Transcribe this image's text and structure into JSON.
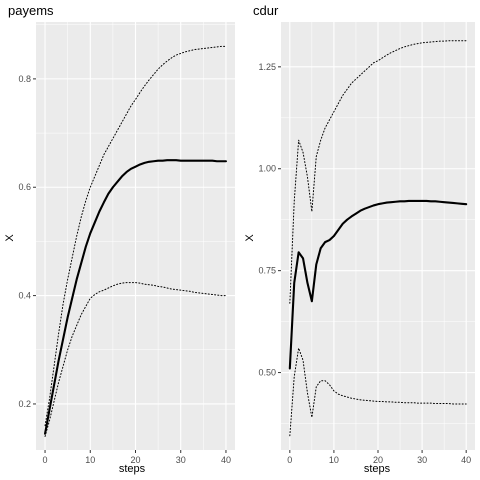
{
  "chart_data": [
    {
      "type": "line",
      "title": "payems",
      "xlabel": "steps",
      "ylabel": "X",
      "xlim": [
        -2,
        42
      ],
      "ylim": [
        0.115,
        0.905
      ],
      "xticks": [
        0,
        10,
        20,
        30,
        40
      ],
      "xtick_labels": [
        "0",
        "10",
        "20",
        "30",
        "40"
      ],
      "yticks": [
        0.2,
        0.4,
        0.6,
        0.8
      ],
      "ytick_labels": [
        "0.2",
        "0.4",
        "0.6",
        "0.8"
      ],
      "grid": true,
      "x": [
        0,
        1,
        2,
        3,
        4,
        5,
        6,
        7,
        8,
        9,
        10,
        11,
        12,
        13,
        14,
        15,
        16,
        17,
        18,
        19,
        20,
        21,
        22,
        23,
        24,
        25,
        26,
        27,
        28,
        29,
        30,
        31,
        32,
        33,
        34,
        35,
        36,
        37,
        38,
        39,
        40
      ],
      "series": [
        {
          "style": "solid",
          "values": [
            0.145,
            0.19,
            0.235,
            0.28,
            0.32,
            0.36,
            0.395,
            0.43,
            0.46,
            0.49,
            0.515,
            0.535,
            0.555,
            0.572,
            0.588,
            0.6,
            0.61,
            0.62,
            0.628,
            0.634,
            0.638,
            0.642,
            0.645,
            0.647,
            0.648,
            0.649,
            0.649,
            0.65,
            0.65,
            0.65,
            0.649,
            0.649,
            0.649,
            0.649,
            0.649,
            0.649,
            0.649,
            0.649,
            0.648,
            0.648,
            0.648
          ]
        },
        {
          "style": "dotted",
          "values": [
            0.16,
            0.21,
            0.27,
            0.33,
            0.385,
            0.43,
            0.47,
            0.51,
            0.545,
            0.575,
            0.6,
            0.62,
            0.64,
            0.66,
            0.675,
            0.69,
            0.705,
            0.72,
            0.735,
            0.75,
            0.762,
            0.775,
            0.787,
            0.798,
            0.808,
            0.818,
            0.826,
            0.833,
            0.839,
            0.844,
            0.847,
            0.85,
            0.852,
            0.854,
            0.855,
            0.856,
            0.857,
            0.858,
            0.859,
            0.86,
            0.86
          ]
        },
        {
          "style": "dotted",
          "values": [
            0.14,
            0.17,
            0.205,
            0.24,
            0.27,
            0.3,
            0.325,
            0.345,
            0.365,
            0.38,
            0.395,
            0.402,
            0.407,
            0.41,
            0.414,
            0.418,
            0.421,
            0.423,
            0.424,
            0.424,
            0.424,
            0.423,
            0.421,
            0.42,
            0.419,
            0.417,
            0.416,
            0.414,
            0.412,
            0.411,
            0.41,
            0.409,
            0.408,
            0.406,
            0.405,
            0.404,
            0.403,
            0.402,
            0.401,
            0.4,
            0.4
          ]
        }
      ]
    },
    {
      "type": "line",
      "title": "cdur",
      "xlabel": "steps",
      "ylabel": "X",
      "xlim": [
        -2,
        42
      ],
      "ylim": [
        0.31,
        1.36
      ],
      "xticks": [
        0,
        10,
        20,
        30,
        40
      ],
      "xtick_labels": [
        "0",
        "10",
        "20",
        "30",
        "40"
      ],
      "yticks": [
        0.5,
        0.75,
        1.0,
        1.25
      ],
      "ytick_labels": [
        "0.50",
        "0.75",
        "1.00",
        "1.25"
      ],
      "grid": true,
      "x": [
        0,
        1,
        2,
        3,
        4,
        5,
        6,
        7,
        8,
        9,
        10,
        11,
        12,
        13,
        14,
        15,
        16,
        17,
        18,
        19,
        20,
        21,
        22,
        23,
        24,
        25,
        26,
        27,
        28,
        29,
        30,
        31,
        32,
        33,
        34,
        35,
        36,
        37,
        38,
        39,
        40
      ],
      "series": [
        {
          "style": "solid",
          "values": [
            0.51,
            0.72,
            0.795,
            0.78,
            0.72,
            0.675,
            0.765,
            0.805,
            0.82,
            0.825,
            0.835,
            0.85,
            0.865,
            0.875,
            0.883,
            0.89,
            0.897,
            0.902,
            0.906,
            0.91,
            0.913,
            0.915,
            0.917,
            0.918,
            0.919,
            0.92,
            0.92,
            0.921,
            0.921,
            0.921,
            0.921,
            0.921,
            0.92,
            0.92,
            0.919,
            0.918,
            0.917,
            0.916,
            0.915,
            0.914,
            0.913
          ]
        },
        {
          "style": "dotted",
          "values": [
            0.67,
            0.92,
            1.07,
            1.04,
            0.98,
            0.895,
            1.03,
            1.07,
            1.1,
            1.12,
            1.14,
            1.16,
            1.18,
            1.195,
            1.21,
            1.22,
            1.23,
            1.24,
            1.25,
            1.26,
            1.265,
            1.272,
            1.279,
            1.285,
            1.29,
            1.295,
            1.299,
            1.302,
            1.305,
            1.307,
            1.309,
            1.31,
            1.311,
            1.312,
            1.313,
            1.313,
            1.314,
            1.314,
            1.314,
            1.314,
            1.314
          ]
        },
        {
          "style": "dotted",
          "values": [
            0.345,
            0.49,
            0.56,
            0.53,
            0.45,
            0.39,
            0.465,
            0.48,
            0.48,
            0.47,
            0.455,
            0.447,
            0.443,
            0.44,
            0.437,
            0.435,
            0.433,
            0.432,
            0.431,
            0.43,
            0.429,
            0.429,
            0.428,
            0.428,
            0.427,
            0.427,
            0.426,
            0.426,
            0.426,
            0.425,
            0.425,
            0.425,
            0.425,
            0.424,
            0.424,
            0.424,
            0.424,
            0.423,
            0.423,
            0.423,
            0.423
          ]
        }
      ]
    }
  ]
}
